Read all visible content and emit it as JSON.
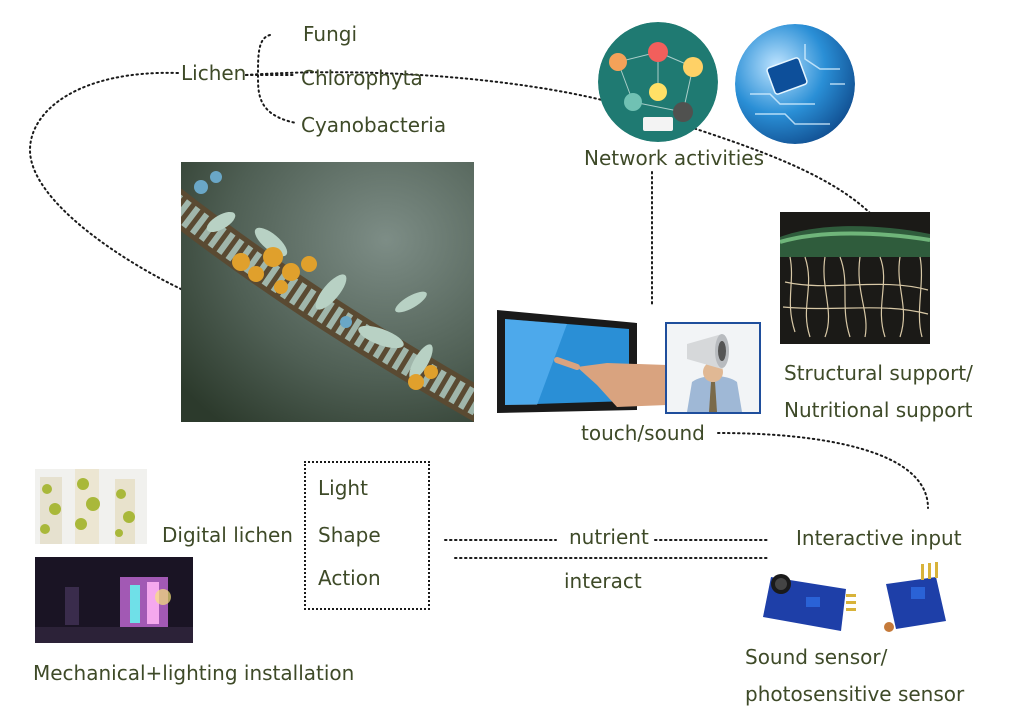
{
  "labels": {
    "lichen": "Lichen",
    "fungi": "Fungi",
    "chlorophyta": "Chlorophyta",
    "cyanobacteria": "Cyanobacteria",
    "network": "Network activities",
    "structural_1": "Structural support/",
    "structural_2": "Nutritional support",
    "touch_sound": "touch/sound",
    "digital_lichen": "Digital lichen",
    "light": "Light",
    "shape": "Shape",
    "action": "Action",
    "nutrient": "nutrient",
    "interact": "interact",
    "interactive_input": "Interactive input",
    "mechanical": "Mechanical+lighting installation",
    "sensor_1": "Sound sensor/",
    "sensor_2": "photosensitive sensor"
  },
  "colors": {
    "text": "#3e4a28",
    "dotted_line": "#1a1a1a",
    "network_circle": "#1f7a72",
    "circuit_circle": "#2a8fd6"
  }
}
